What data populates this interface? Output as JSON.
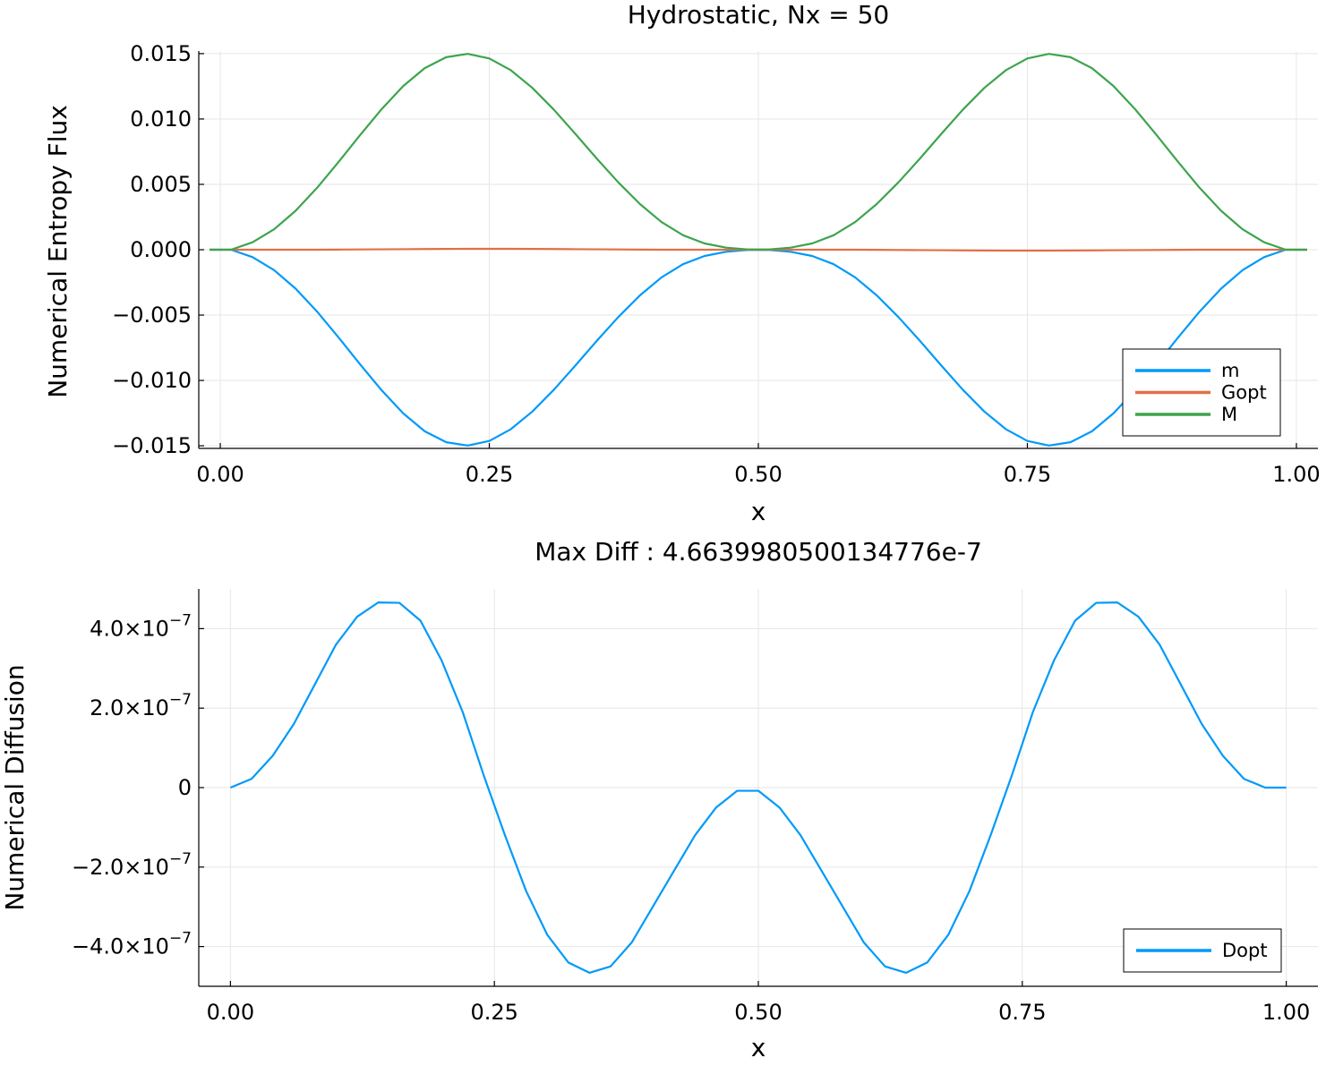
{
  "chart_data": [
    {
      "type": "line",
      "title": "Hydrostatic, Nx = 50",
      "xlabel": "x",
      "ylabel": "Numerical Entropy Flux",
      "xlim": [
        -0.02,
        1.02
      ],
      "ylim": [
        -0.0152,
        0.0152
      ],
      "xticks": [
        0.0,
        0.25,
        0.5,
        0.75,
        1.0
      ],
      "xtick_labels": [
        "0.00",
        "0.25",
        "0.50",
        "0.75",
        "1.00"
      ],
      "yticks": [
        0.015,
        0.01,
        0.005,
        0.0,
        -0.005,
        -0.01,
        -0.015
      ],
      "ytick_labels": [
        "0.015",
        "0.010",
        "0.005",
        "0.000",
        "−0.005",
        "−0.010",
        "−0.015"
      ],
      "grid": true,
      "legend_position": "bottom-right",
      "x": [
        -0.01,
        0.01,
        0.03,
        0.05,
        0.07,
        0.09,
        0.11,
        0.13,
        0.15,
        0.17,
        0.19,
        0.21,
        0.23,
        0.25,
        0.27,
        0.29,
        0.31,
        0.33,
        0.35,
        0.37,
        0.39,
        0.41,
        0.43,
        0.45,
        0.47,
        0.49,
        0.51,
        0.53,
        0.55,
        0.57,
        0.59,
        0.61,
        0.63,
        0.65,
        0.67,
        0.69,
        0.71,
        0.73,
        0.75,
        0.77,
        0.79,
        0.81,
        0.83,
        0.85,
        0.87,
        0.89,
        0.91,
        0.93,
        0.95,
        0.97,
        0.99,
        1.01
      ],
      "series": [
        {
          "name": "m",
          "color": "#009af9",
          "values": [
            0.0,
            0.0,
            -0.00057,
            -0.00156,
            -0.00298,
            -0.00474,
            -0.00672,
            -0.00878,
            -0.01076,
            -0.01252,
            -0.01389,
            -0.01473,
            -0.01498,
            -0.01463,
            -0.01373,
            -0.01238,
            -0.01071,
            -0.00886,
            -0.00696,
            -0.00514,
            -0.00349,
            -0.00212,
            -0.00111,
            -0.00048,
            -0.00016,
            -2e-05,
            -2e-05,
            -0.00016,
            -0.00048,
            -0.00111,
            -0.00212,
            -0.00349,
            -0.00514,
            -0.00696,
            -0.00886,
            -0.01071,
            -0.01238,
            -0.01373,
            -0.01463,
            -0.01498,
            -0.01473,
            -0.01389,
            -0.01252,
            -0.01076,
            -0.00878,
            -0.00672,
            -0.00474,
            -0.00298,
            -0.00156,
            -0.00057,
            0.0,
            0.0
          ]
        },
        {
          "name": "Gopt",
          "color": "#e26f46",
          "values": [
            0.0,
            0.0,
            0.0,
            0.0,
            0.0,
            0.0,
            1e-05,
            2e-05,
            3e-05,
            4e-05,
            5e-05,
            6e-05,
            7e-05,
            7e-05,
            7e-05,
            6e-05,
            5e-05,
            4e-05,
            3e-05,
            2e-05,
            1e-05,
            0.0,
            0.0,
            0.0,
            0.0,
            0.0,
            0.0,
            0.0,
            0.0,
            0.0,
            0.0,
            -1e-05,
            -2e-05,
            -3e-05,
            -4e-05,
            -5e-05,
            -6e-05,
            -7e-05,
            -7e-05,
            -7e-05,
            -6e-05,
            -5e-05,
            -4e-05,
            -3e-05,
            -2e-05,
            -1e-05,
            0.0,
            0.0,
            0.0,
            0.0,
            0.0,
            0.0
          ]
        },
        {
          "name": "M",
          "color": "#3da44d",
          "values": [
            0.0,
            0.0,
            0.00057,
            0.00156,
            0.00298,
            0.00474,
            0.00672,
            0.00878,
            0.01076,
            0.01252,
            0.01389,
            0.01473,
            0.01498,
            0.01463,
            0.01373,
            0.01238,
            0.01071,
            0.00886,
            0.00696,
            0.00514,
            0.00349,
            0.00212,
            0.00111,
            0.00048,
            0.00016,
            2e-05,
            2e-05,
            0.00016,
            0.00048,
            0.00111,
            0.00212,
            0.00349,
            0.00514,
            0.00696,
            0.00886,
            0.01071,
            0.01238,
            0.01373,
            0.01463,
            0.01498,
            0.01473,
            0.01389,
            0.01252,
            0.01076,
            0.00878,
            0.00672,
            0.00474,
            0.00298,
            0.00156,
            0.00057,
            0.0,
            0.0
          ]
        }
      ]
    },
    {
      "type": "line",
      "title": "Max Diff : 4.6639980500134776e-7",
      "xlabel": "x",
      "ylabel": "Numerical Diffusion",
      "xlim": [
        -0.03,
        1.03
      ],
      "ylim": [
        -5e-07,
        5e-07
      ],
      "xticks": [
        0.0,
        0.25,
        0.5,
        0.75,
        1.0
      ],
      "xtick_labels": [
        "0.00",
        "0.25",
        "0.50",
        "0.75",
        "1.00"
      ],
      "yticks": [
        4e-07,
        2e-07,
        0.0,
        -2e-07,
        -4e-07
      ],
      "ytick_labels": [
        {
          "mantissa": "4.0×10",
          "exp": "−7"
        },
        {
          "mantissa": "2.0×10",
          "exp": "−7"
        },
        {
          "mantissa": "0",
          "exp": ""
        },
        {
          "mantissa": "−2.0×10",
          "exp": "−7"
        },
        {
          "mantissa": "−4.0×10",
          "exp": "−7"
        }
      ],
      "grid": true,
      "legend_position": "bottom-right",
      "x": [
        0.0,
        0.02,
        0.04,
        0.06,
        0.08,
        0.1,
        0.12,
        0.14,
        0.16,
        0.18,
        0.2,
        0.22,
        0.24,
        0.26,
        0.28,
        0.3,
        0.32,
        0.34,
        0.36,
        0.38,
        0.4,
        0.42,
        0.44,
        0.46,
        0.48,
        0.5,
        0.52,
        0.54,
        0.56,
        0.58,
        0.6,
        0.62,
        0.64,
        0.66,
        0.68,
        0.7,
        0.72,
        0.74,
        0.76,
        0.78,
        0.8,
        0.82,
        0.84,
        0.86,
        0.88,
        0.9,
        0.92,
        0.94,
        0.96,
        0.98,
        1.0
      ],
      "series": [
        {
          "name": "Dopt",
          "color": "#009af9",
          "values": [
            0.0,
            2.2e-08,
            8e-08,
            1.6e-07,
            2.6e-07,
            3.6e-07,
            4.3e-07,
            4.66e-07,
            4.65e-07,
            4.2e-07,
            3.2e-07,
            1.9e-07,
            3e-08,
            -1.2e-07,
            -2.6e-07,
            -3.7e-07,
            -4.4e-07,
            -4.66e-07,
            -4.5e-07,
            -3.9e-07,
            -3e-07,
            -2.1e-07,
            -1.2e-07,
            -5e-08,
            -8e-09,
            -8e-09,
            -5e-08,
            -1.2e-07,
            -2.1e-07,
            -3e-07,
            -3.9e-07,
            -4.5e-07,
            -4.66e-07,
            -4.4e-07,
            -3.7e-07,
            -2.6e-07,
            -1.2e-07,
            3e-08,
            1.9e-07,
            3.2e-07,
            4.2e-07,
            4.65e-07,
            4.66e-07,
            4.3e-07,
            3.6e-07,
            2.6e-07,
            1.6e-07,
            8e-08,
            2.2e-08,
            0.0,
            0.0
          ]
        }
      ]
    }
  ]
}
